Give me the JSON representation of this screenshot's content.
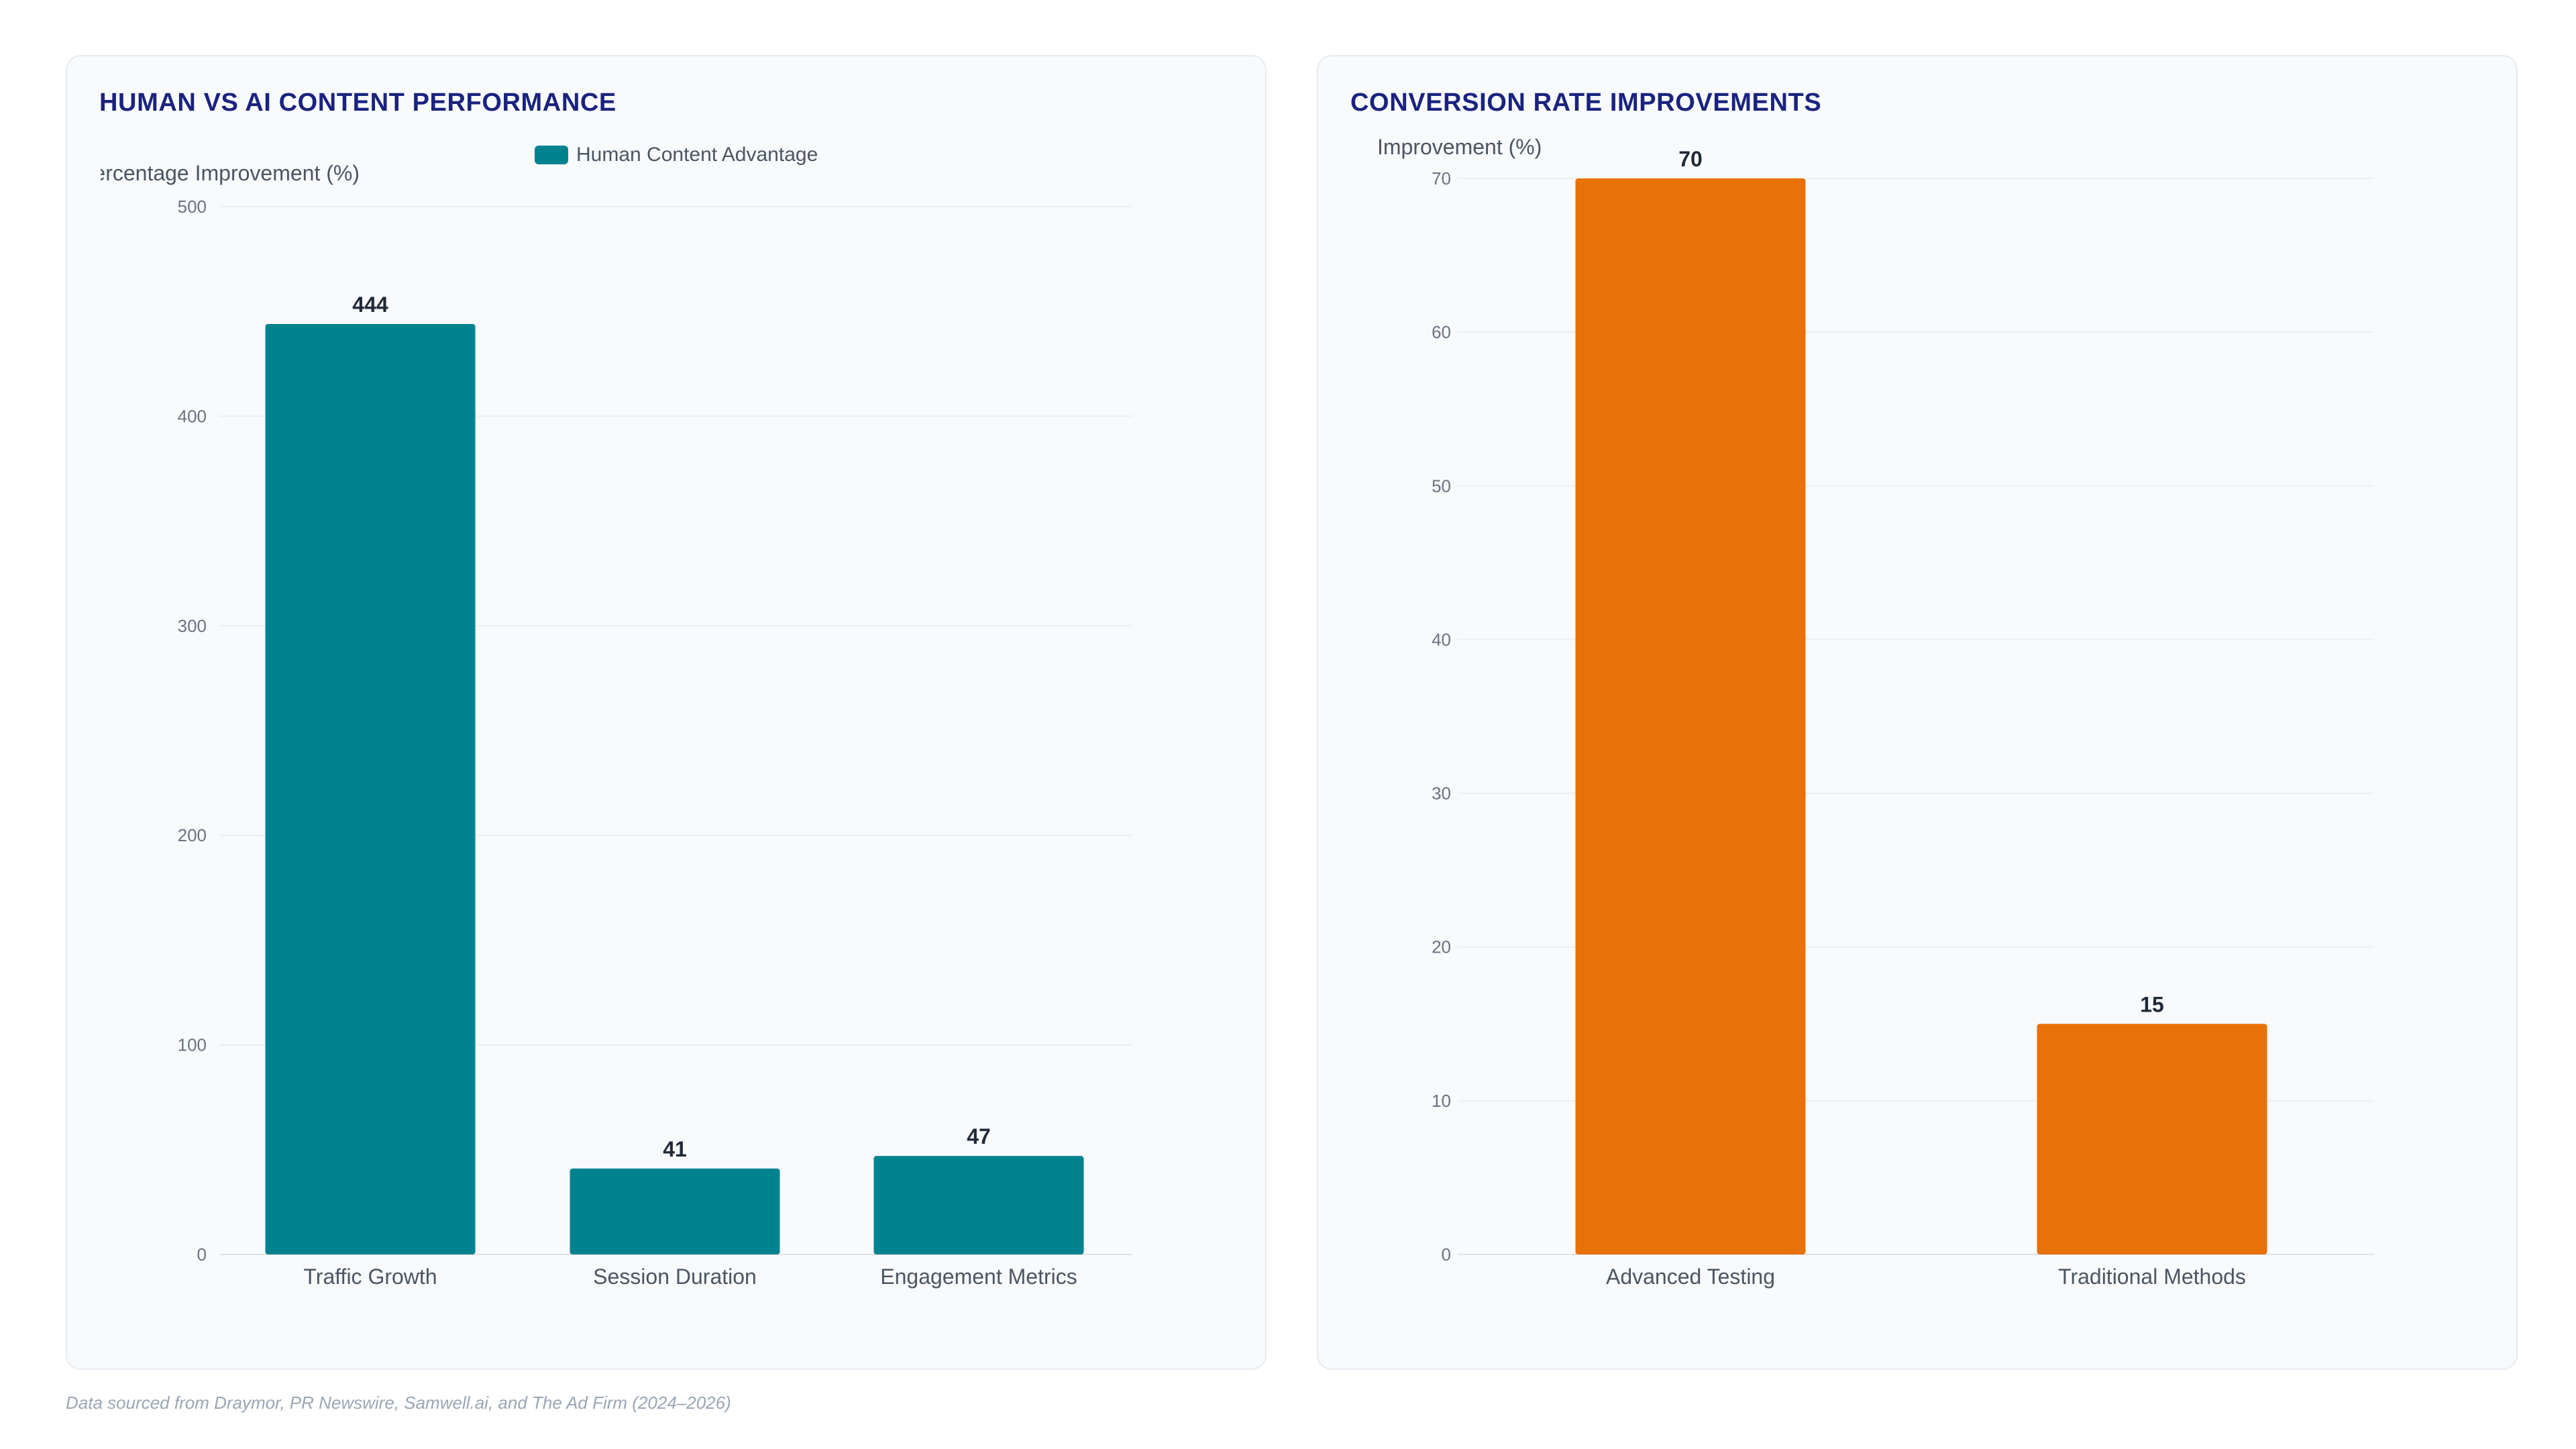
{
  "footer": {
    "source_note": "Data sourced from Draymor, PR Newswire, Samwell.ai, and The Ad Firm (2024–2026)"
  },
  "chart_data": [
    {
      "type": "bar",
      "title": "HUMAN VS AI CONTENT PERFORMANCE",
      "ylabel": "Percentage Improvement (%)",
      "xlabel": "",
      "categories": [
        "Traffic Growth",
        "Session Duration",
        "Engagement Metrics"
      ],
      "series": [
        {
          "name": "Human Content Advantage",
          "values": [
            444,
            41,
            47
          ],
          "color": "#00838f"
        }
      ],
      "ylim": [
        0,
        500
      ],
      "yticks": [
        0,
        100,
        200,
        300,
        400,
        500
      ],
      "grid": true,
      "legend": "top-center",
      "data_labels": true
    },
    {
      "type": "bar",
      "title": "CONVERSION RATE IMPROVEMENTS",
      "ylabel": "Improvement (%)",
      "xlabel": "",
      "categories": [
        "Advanced Testing",
        "Traditional Methods"
      ],
      "series": [
        {
          "values": [
            70,
            15
          ],
          "color": "#e8710a"
        }
      ],
      "ylim": [
        0,
        70
      ],
      "yticks": [
        0,
        10,
        20,
        30,
        40,
        50,
        60,
        70
      ],
      "grid": true,
      "legend": "none",
      "data_labels": true
    }
  ]
}
